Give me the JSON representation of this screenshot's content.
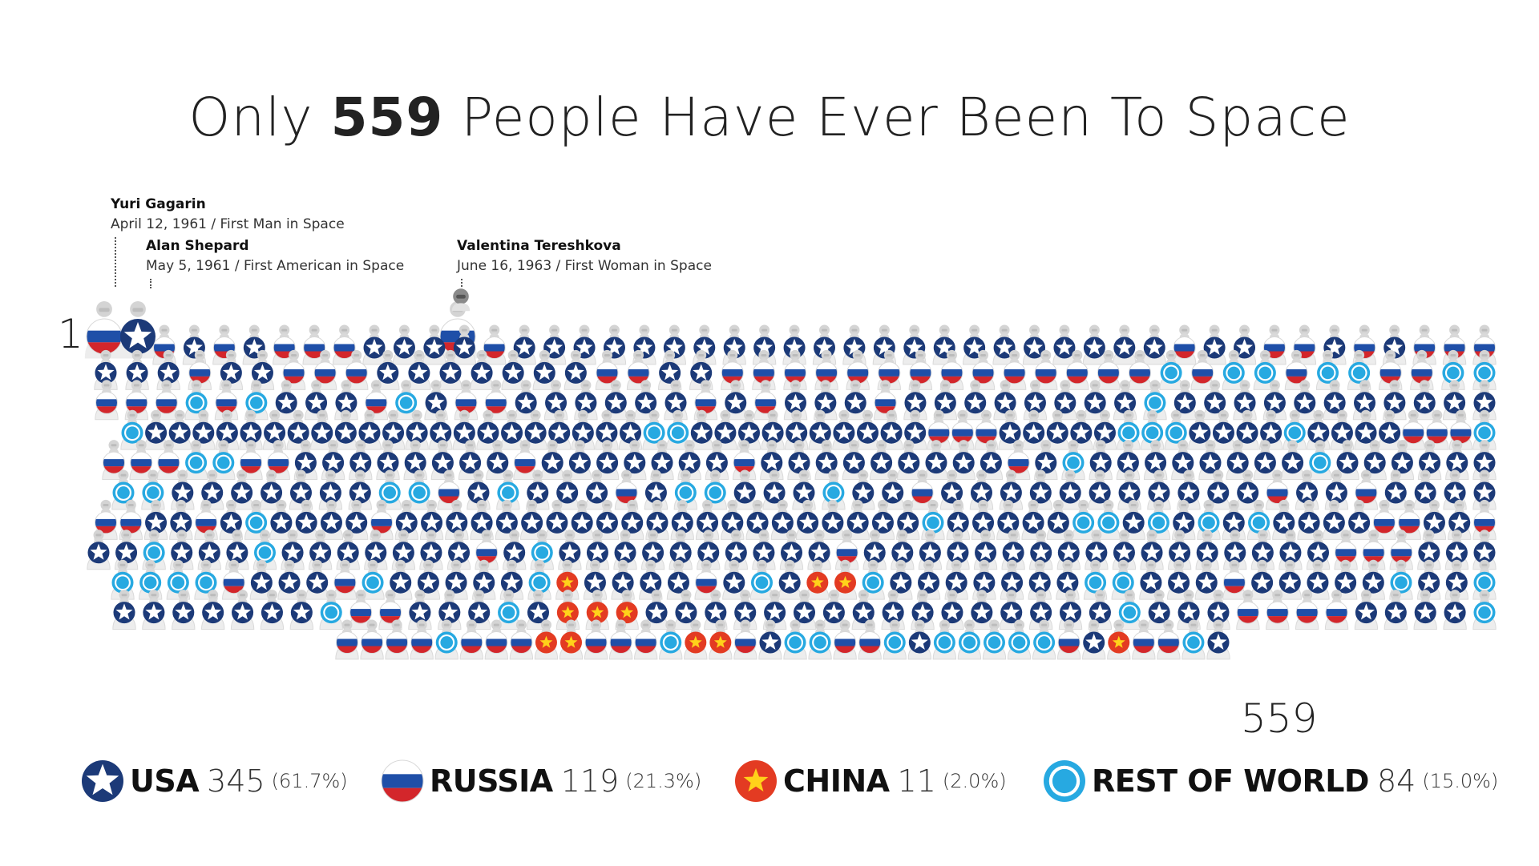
{
  "title": {
    "prefix": "Only",
    "number": "559",
    "suffix": "People Have Ever Been To Space"
  },
  "annotations": [
    {
      "name": "Yuri Gagarin",
      "detail": "April 12, 1961 / First Man in Space"
    },
    {
      "name": "Alan Shepard",
      "detail": "May 5, 1961 / First American in Space"
    },
    {
      "name": "Valentina Tereshkova",
      "detail": "June 16, 1963 / First Woman in Space"
    }
  ],
  "labels": {
    "start": "1",
    "end": "559"
  },
  "colors": {
    "usa": "#1c3a78",
    "russia_blue": "#1f4fa8",
    "russia_red": "#d3262b",
    "china_red": "#e33b22",
    "china_star": "#ffd21a",
    "row": "#27a9e1",
    "helmet": "#cfcfcf"
  },
  "legend": [
    {
      "key": "usa",
      "icon": "usa-star-icon",
      "name": "USA",
      "count": "345",
      "pct": "(61.7%)"
    },
    {
      "key": "russia",
      "icon": "russia-flag-icon",
      "name": "RUSSIA",
      "count": "119",
      "pct": "(21.3%)"
    },
    {
      "key": "china",
      "icon": "china-star-icon",
      "name": "CHINA",
      "count": "11",
      "pct": "(2.0%)"
    },
    {
      "key": "row",
      "icon": "world-rings-icon",
      "name": "REST OF WORLD",
      "count": "84",
      "pct": "(15.0%)"
    }
  ],
  "chart_data": {
    "type": "pictogram",
    "total": 559,
    "categories": [
      "USA",
      "RUSSIA",
      "CHINA",
      "REST OF WORLD"
    ],
    "values": [
      345,
      119,
      11,
      84
    ],
    "percentages": [
      61.7,
      21.3,
      2.0,
      15.0
    ],
    "highlighted": [
      {
        "index": 1,
        "country": "RUSSIA",
        "name": "Yuri Gagarin"
      },
      {
        "index": 2,
        "country": "USA",
        "name": "Alan Shepard"
      },
      {
        "index": 14,
        "country": "RUSSIA",
        "name": "Valentina Tereshkova"
      }
    ],
    "row_pattern": [
      "RURURRRUUUURUUUUUUUUUUUUUUUUUUUUUURUURRURURRR",
      "UUURUURRRUUUUUUURRUURRRRRRRRRRRRRRWRWWRWWRRWW",
      "RRRWRWUUURWURRUUUUUURURUUURUUUUUUUUWUUUUUUUUUUU",
      "WUUUUUUUUUUUUUUUUUUUUUWWUUUUUUUUUURRRUUUUUWWWUUUUWUUUURRRW",
      "RRRWWRRUUUUUUUURUUUUUUURUUUUUUUUURUWUUUUUUUUWUUUUUU",
      "WWUUUUUUUWWRUWUUURUWWUUUWUURUUUUUUUUUUURUURUUUU",
      "RRUURUWUUUURUUUUUUUUUUUUUUUUUUUUUWUUUUUWWUWUWUWUUUURRUUR",
      "UUWUUUWUUUUUUURUWUUUUUUUUUURUUUUUUUUUUUUUUUUURRRUUU",
      "WWWWRUUURWUUUUUWCUUUURUWUCCWUUUUUUUWWUUURUUUUUWUUW",
      "UUUUUUUWRRUUUWUCCCUUUUUUUUUUUUUUUUWUUURRRRUUUUW",
      "RRRRWRRRCCRRRWCCRUWWRRWUWWWWWRUCRRWU"
    ]
  }
}
